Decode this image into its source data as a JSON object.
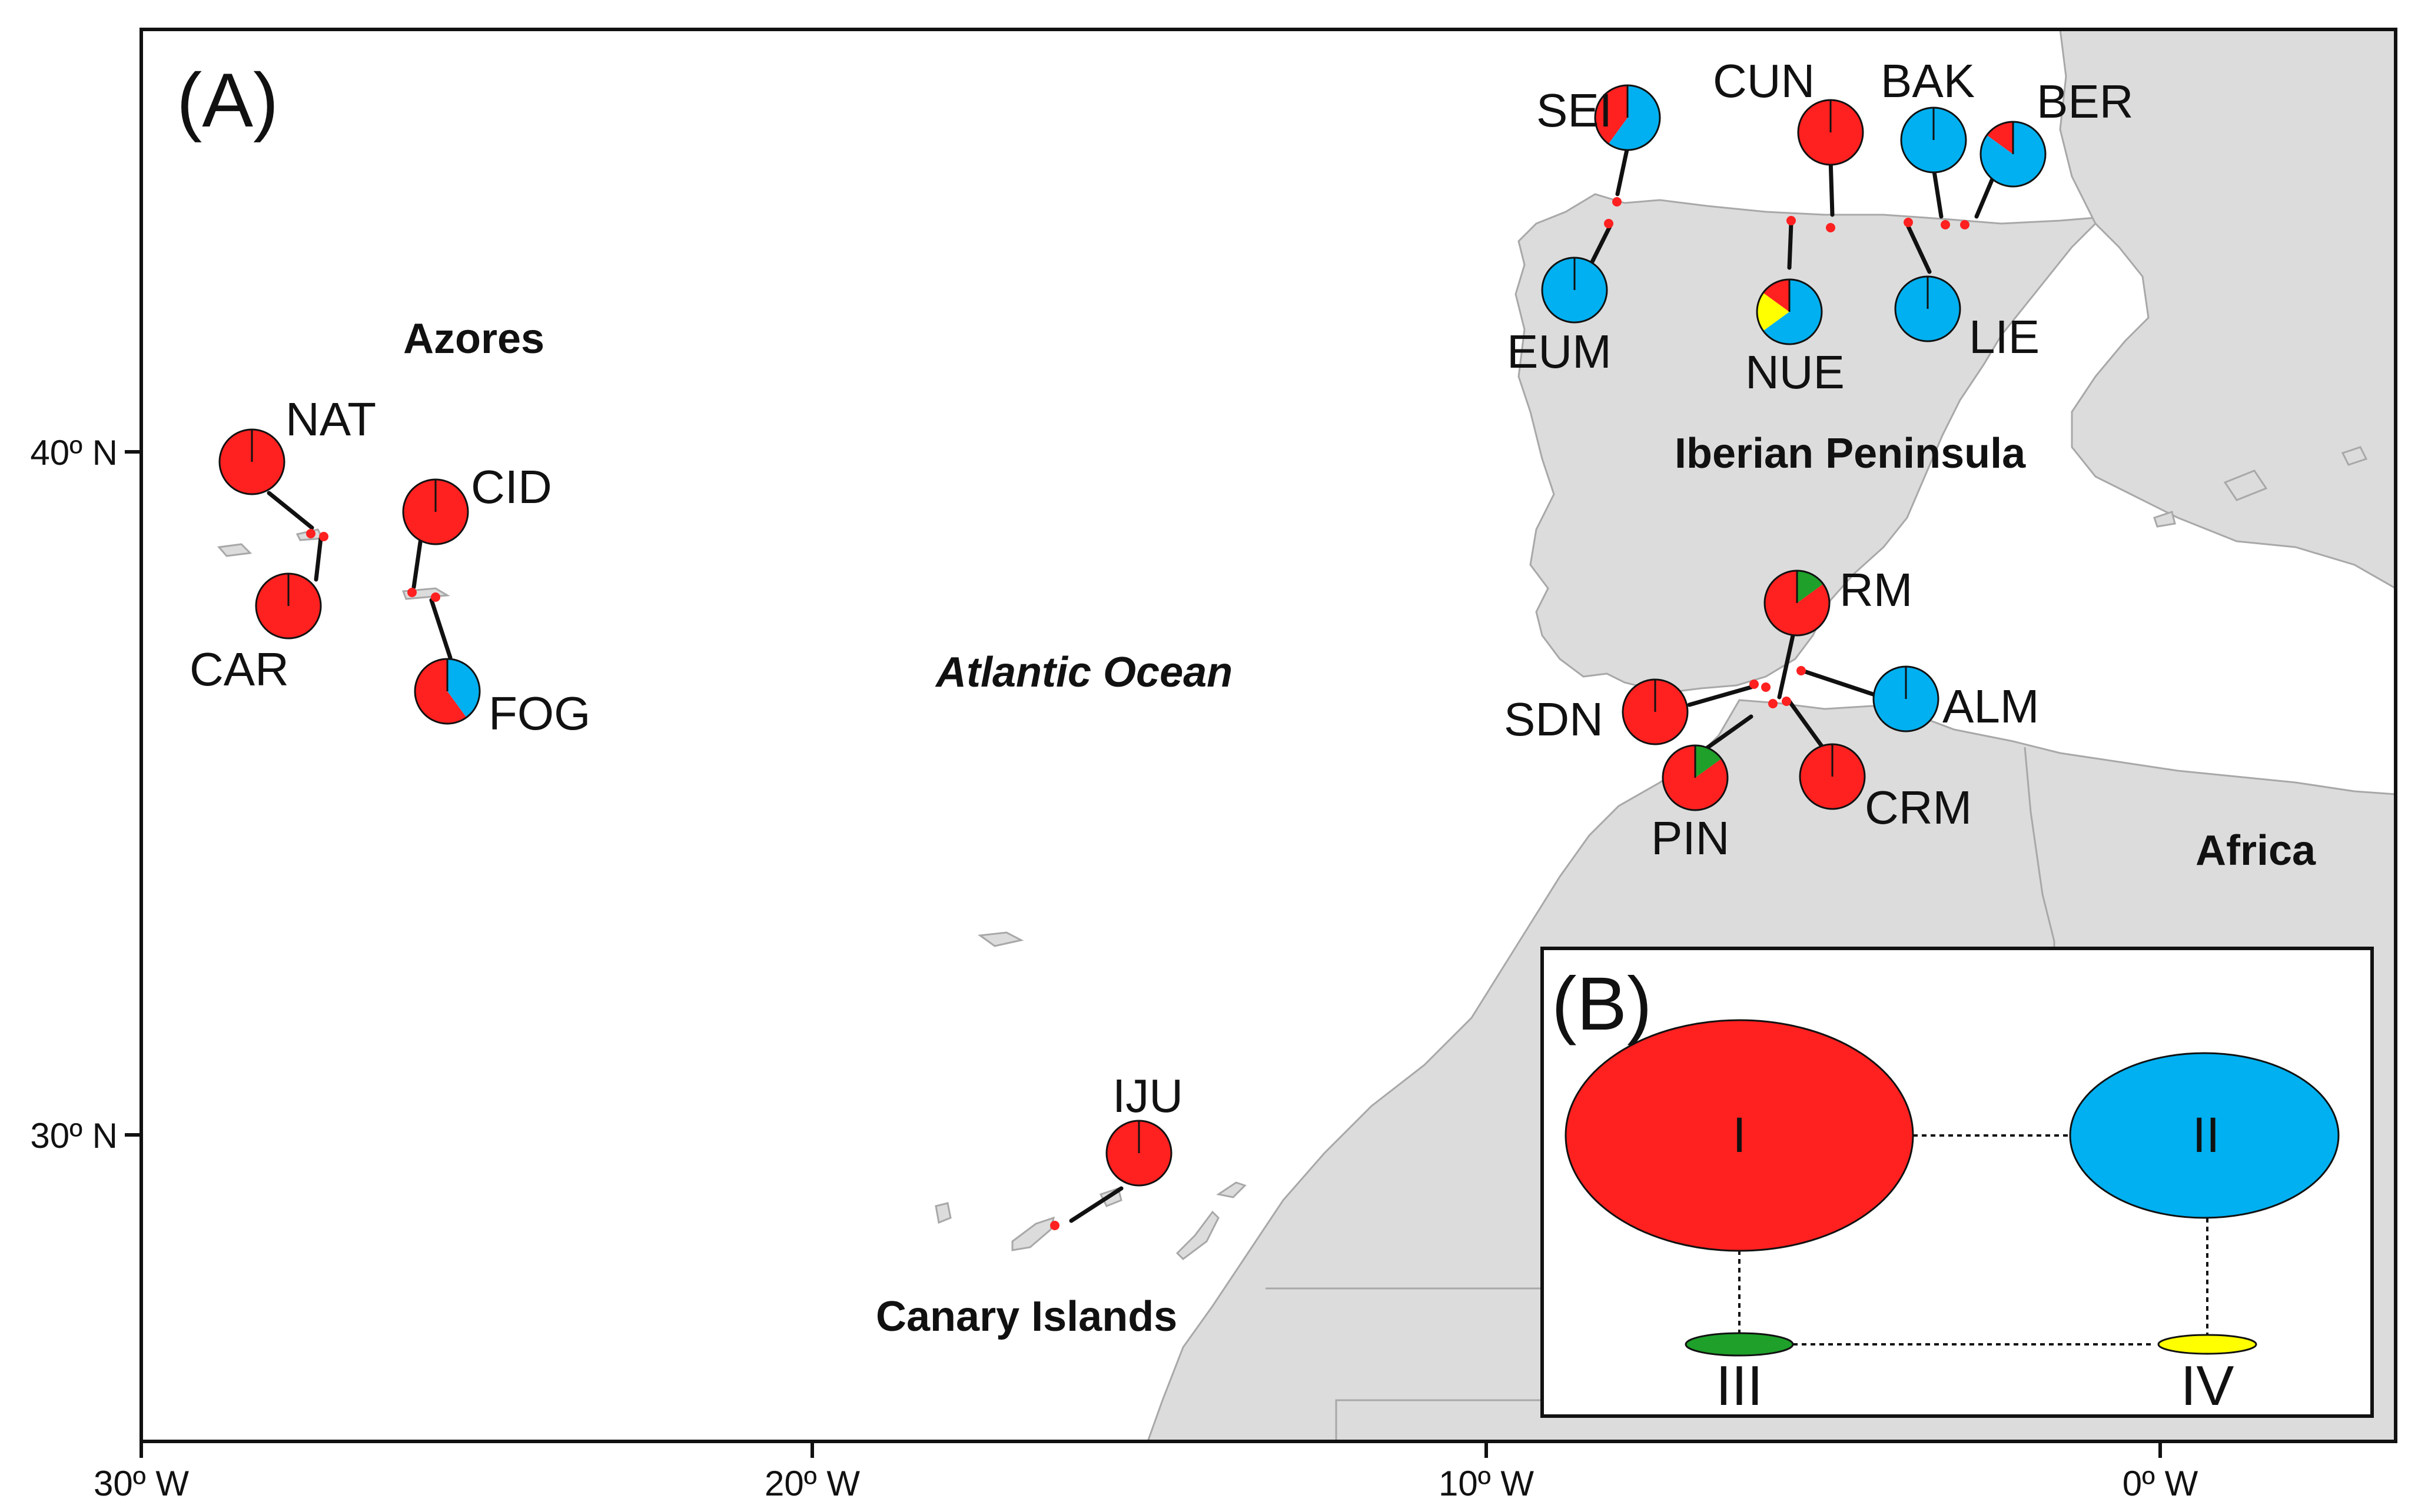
{
  "panel_a_label": "(A)",
  "panel_b_label": "(B)",
  "regions": {
    "azores": "Azores",
    "iberia": "Iberian Peninsula",
    "atlantic": "Atlantic Ocean",
    "canary": "Canary Islands",
    "africa": "Africa"
  },
  "axes": {
    "x_ticks": [
      "30º W",
      "20º W",
      "10º W",
      "0º W"
    ],
    "y_ticks": [
      "40º N",
      "30º N"
    ]
  },
  "colors": {
    "I": "#ff2020",
    "II": "#00b0f0",
    "III": "#1ea02a",
    "IV": "#ffff00",
    "land": "#dcdcdc",
    "coast": "#a8a8a8"
  },
  "populations": [
    {
      "code": "SEI",
      "I": 0.4,
      "II": 0.6,
      "III": 0,
      "IV": 0
    },
    {
      "code": "CUN",
      "I": 1,
      "II": 0,
      "III": 0,
      "IV": 0
    },
    {
      "code": "BAK",
      "I": 0,
      "II": 1,
      "III": 0,
      "IV": 0
    },
    {
      "code": "BER",
      "I": 0.15,
      "II": 0.85,
      "III": 0,
      "IV": 0
    },
    {
      "code": "EUM",
      "I": 0,
      "II": 1,
      "III": 0,
      "IV": 0
    },
    {
      "code": "NUE",
      "I": 0.15,
      "II": 0.65,
      "III": 0,
      "IV": 0.2
    },
    {
      "code": "LIE",
      "I": 0,
      "II": 1,
      "III": 0,
      "IV": 0
    },
    {
      "code": "NAT",
      "I": 1,
      "II": 0,
      "III": 0,
      "IV": 0
    },
    {
      "code": "CID",
      "I": 1,
      "II": 0,
      "III": 0,
      "IV": 0
    },
    {
      "code": "CAR",
      "I": 1,
      "II": 0,
      "III": 0,
      "IV": 0
    },
    {
      "code": "FOG",
      "I": 0.6,
      "II": 0.4,
      "III": 0,
      "IV": 0
    },
    {
      "code": "RM",
      "I": 0.85,
      "II": 0,
      "III": 0.15,
      "IV": 0
    },
    {
      "code": "ALM",
      "I": 0,
      "II": 1,
      "III": 0,
      "IV": 0
    },
    {
      "code": "SDN",
      "I": 1,
      "II": 0,
      "III": 0,
      "IV": 0
    },
    {
      "code": "PIN",
      "I": 0.85,
      "II": 0,
      "III": 0.15,
      "IV": 0
    },
    {
      "code": "CRM",
      "I": 1,
      "II": 0,
      "III": 0,
      "IV": 0
    },
    {
      "code": "IJU",
      "I": 1,
      "II": 0,
      "III": 0,
      "IV": 0
    }
  ],
  "network": {
    "haplotypes": [
      "I",
      "II",
      "III",
      "IV"
    ]
  }
}
